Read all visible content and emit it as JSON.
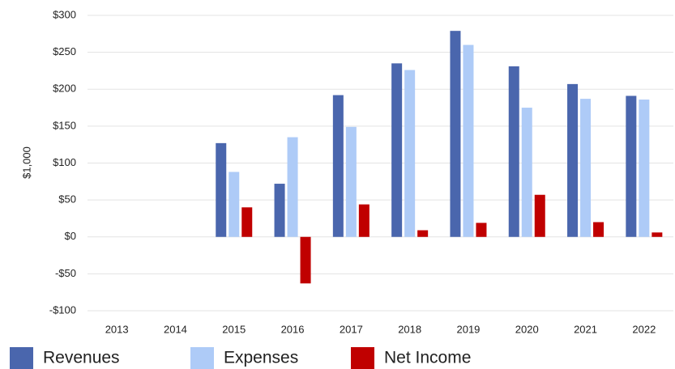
{
  "chart_data": {
    "type": "bar",
    "y_label": "$1,000",
    "categories": [
      "2013",
      "2014",
      "2015",
      "2016",
      "2017",
      "2018",
      "2019",
      "2020",
      "2021",
      "2022"
    ],
    "series": [
      {
        "name": "Revenues",
        "color": "#4a66ad",
        "values": [
          null,
          null,
          127,
          72,
          192,
          235,
          279,
          231,
          207,
          191
        ]
      },
      {
        "name": "Expenses",
        "color": "#aecbf7",
        "values": [
          null,
          null,
          88,
          135,
          149,
          226,
          260,
          175,
          187,
          186
        ]
      },
      {
        "name": "Net Income",
        "color": "#c00000",
        "values": [
          null,
          null,
          40,
          -63,
          44,
          9,
          19,
          57,
          20,
          6
        ]
      }
    ],
    "ylim": [
      -100,
      300
    ],
    "yticks": [
      {
        "value": -100,
        "label": "-$100"
      },
      {
        "value": -50,
        "label": "-$50"
      },
      {
        "value": 0,
        "label": "$0"
      },
      {
        "value": 50,
        "label": "$50"
      },
      {
        "value": 100,
        "label": "$100"
      },
      {
        "value": 150,
        "label": "$150"
      },
      {
        "value": 200,
        "label": "$200"
      },
      {
        "value": 250,
        "label": "$250"
      },
      {
        "value": 300,
        "label": "$300"
      }
    ],
    "grid": true,
    "legend": "bottom"
  }
}
